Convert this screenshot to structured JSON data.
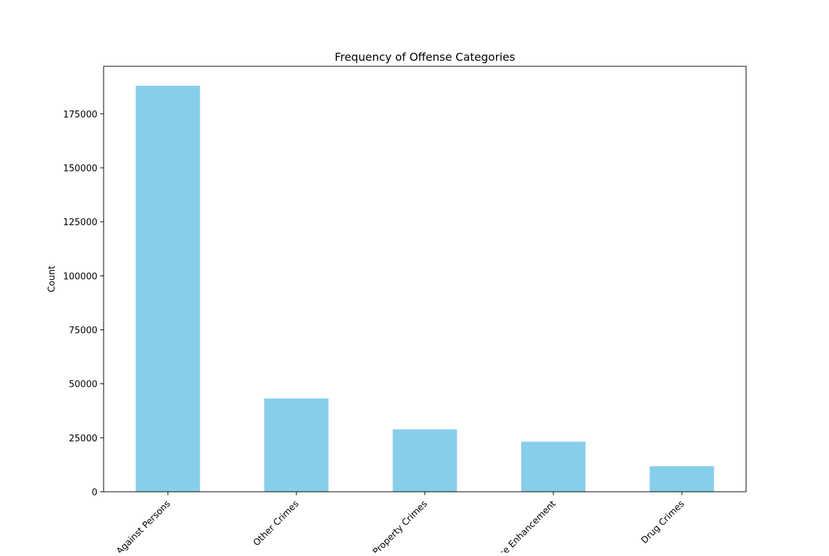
{
  "chart_data": {
    "type": "bar",
    "title": "Frequency of Offense Categories",
    "xlabel": "",
    "ylabel": "Count",
    "categories": [
      "Crimes Against Persons",
      "Other Crimes",
      "Property Crimes",
      "Sentence Enhancement",
      "Drug Crimes"
    ],
    "values": [
      188000,
      43200,
      28900,
      23200,
      11800
    ],
    "ylim": [
      0,
      197000
    ],
    "yticks": [
      0,
      25000,
      50000,
      75000,
      100000,
      125000,
      150000,
      175000
    ],
    "bar_color": "#87ceeb",
    "grid": false,
    "legend": "none"
  }
}
